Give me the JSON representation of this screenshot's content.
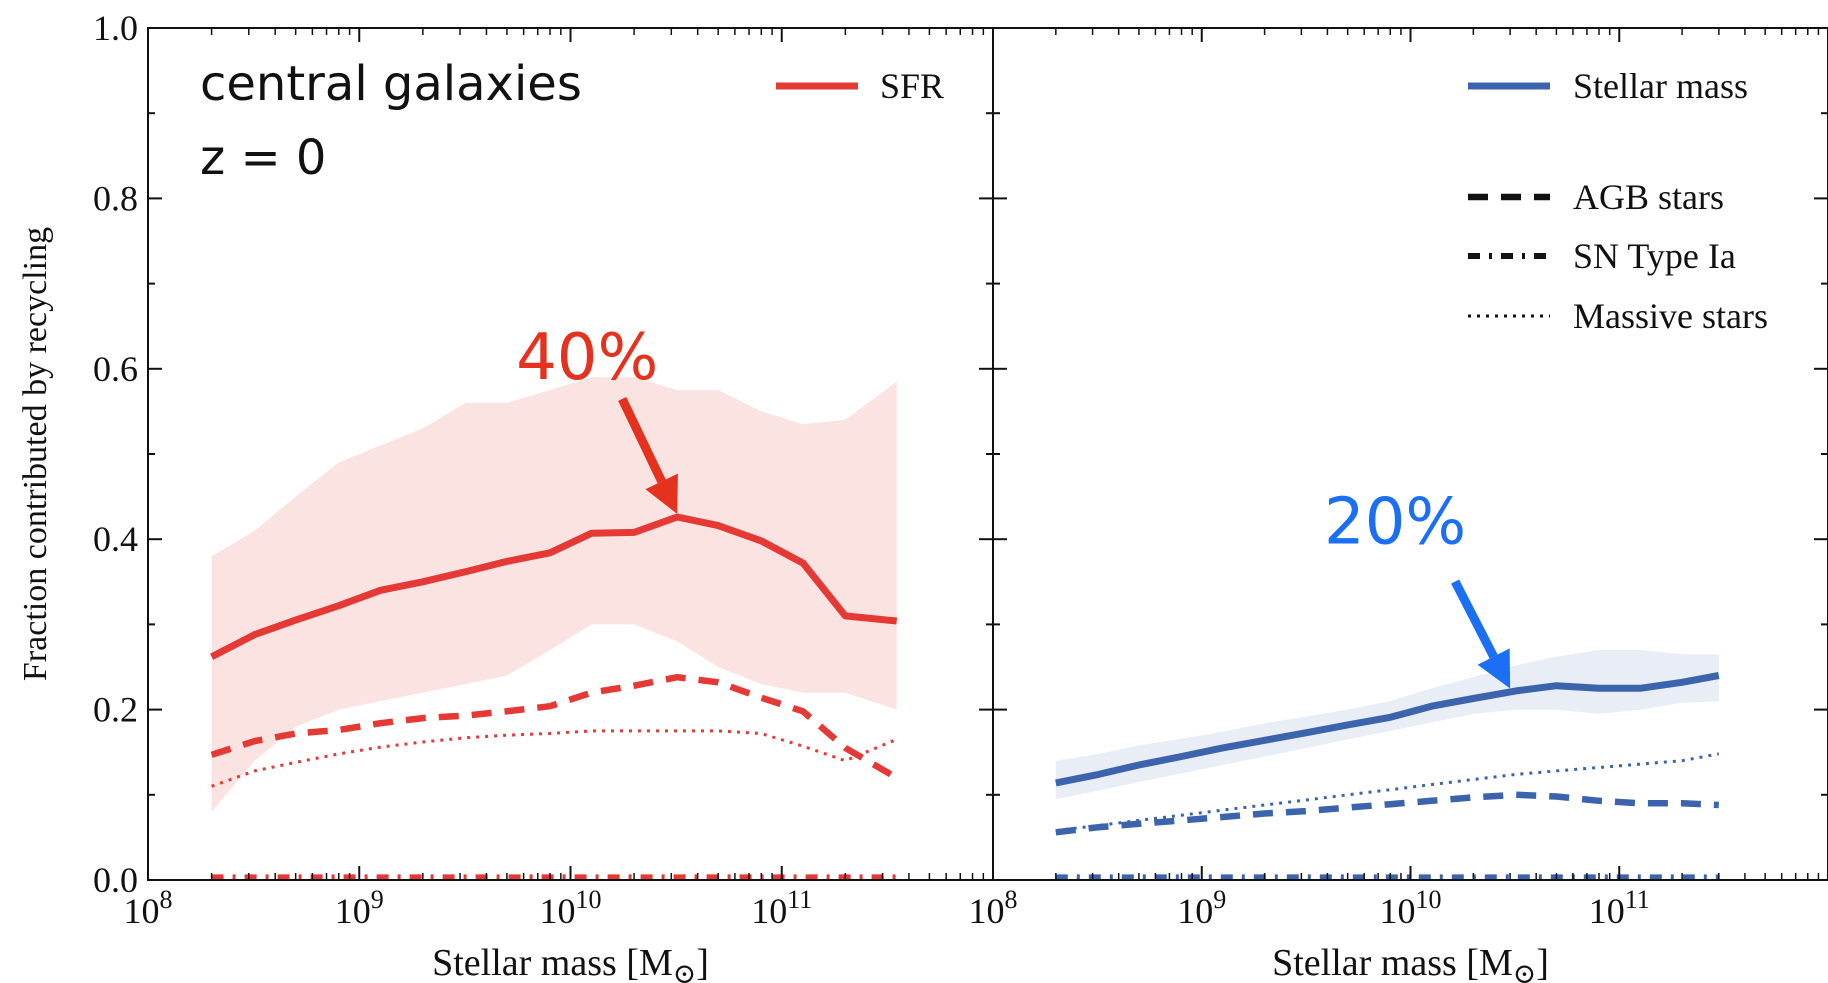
{
  "chart_data": [
    {
      "type": "line",
      "panel": "left",
      "annotation_title": [
        "central galaxies",
        "z = 0"
      ],
      "xlabel": "Stellar mass [M⊙]",
      "ylabel": "Fraction contributed by recycling",
      "xscale": "log",
      "xlim": [
        100000000.0,
        1000000000000.0
      ],
      "ylim": [
        0.0,
        1.0
      ],
      "xticklabels": [
        "10^8",
        "10^9",
        "10^10",
        "10^11"
      ],
      "yticklabels": [
        "0.0",
        "0.2",
        "0.4",
        "0.6",
        "0.8",
        "1.0"
      ],
      "legend": {
        "entries": [
          "SFR"
        ],
        "placement": "top-right"
      },
      "annotations": [
        {
          "text": "40%",
          "x": 32000000000.0,
          "y": 0.425,
          "color": "#e5321f"
        }
      ],
      "x": [
        200000000.0,
        320000000.0,
        500000000.0,
        800000000.0,
        1260000000.0,
        2000000000.0,
        3200000000.0,
        5000000000.0,
        8000000000.0,
        12600000000.0,
        20000000000.0,
        32000000000.0,
        50000000000.0,
        80000000000.0,
        126000000000.0,
        200000000000.0,
        350000000000.0
      ],
      "series": [
        {
          "name": "SFR",
          "style": "solid",
          "color": "#e53935",
          "values": [
            0.262,
            0.288,
            0.305,
            0.322,
            0.34,
            0.35,
            0.362,
            0.374,
            0.384,
            0.407,
            0.408,
            0.426,
            0.416,
            0.398,
            0.372,
            0.31,
            0.304
          ]
        },
        {
          "name": "",
          "style": "band",
          "color": "#fbe3e2",
          "lower": [
            0.08,
            0.14,
            0.18,
            0.2,
            0.21,
            0.22,
            0.23,
            0.24,
            0.27,
            0.3,
            0.3,
            0.28,
            0.25,
            0.23,
            0.22,
            0.22,
            0.2
          ],
          "upper": [
            0.38,
            0.41,
            0.45,
            0.49,
            0.51,
            0.53,
            0.56,
            0.56,
            0.575,
            0.59,
            0.59,
            0.575,
            0.575,
            0.55,
            0.535,
            0.54,
            0.585
          ]
        },
        {
          "name": "",
          "style": "dashed",
          "color": "#e53935",
          "values": [
            0.147,
            0.163,
            0.172,
            0.176,
            0.184,
            0.19,
            0.193,
            0.198,
            0.204,
            0.22,
            0.228,
            0.238,
            0.232,
            0.214,
            0.198,
            0.155,
            0.12
          ]
        },
        {
          "name": "",
          "style": "dotted",
          "color": "#e53935",
          "values": [
            0.11,
            0.128,
            0.138,
            0.148,
            0.156,
            0.162,
            0.167,
            0.17,
            0.172,
            0.175,
            0.175,
            0.175,
            0.175,
            0.172,
            0.157,
            0.14,
            0.165
          ]
        },
        {
          "name": "",
          "style": "dashdot",
          "color": "#e53935",
          "values": [
            0.003,
            0.003,
            0.003,
            0.003,
            0.003,
            0.003,
            0.003,
            0.003,
            0.003,
            0.003,
            0.003,
            0.003,
            0.003,
            0.003,
            0.003,
            0.003,
            0.003
          ]
        }
      ]
    },
    {
      "type": "line",
      "panel": "right",
      "xlabel": "Stellar mass [M⊙]",
      "xscale": "log",
      "xlim": [
        100000000.0,
        1000000000000.0
      ],
      "ylim": [
        0.0,
        1.0
      ],
      "xticklabels": [
        "10^8",
        "10^9",
        "10^10",
        "10^11"
      ],
      "legend": {
        "entries": [
          "Stellar mass",
          "AGB stars",
          "SN Type Ia",
          "Massive stars"
        ],
        "placement": "top-right"
      },
      "annotations": [
        {
          "text": "20%",
          "x": 30000000000.0,
          "y": 0.22,
          "color": "#1a6ff5"
        }
      ],
      "x": [
        200000000.0,
        320000000.0,
        500000000.0,
        800000000.0,
        1260000000.0,
        2000000000.0,
        3200000000.0,
        5000000000.0,
        8000000000.0,
        12600000000.0,
        20000000000.0,
        32000000000.0,
        50000000000.0,
        80000000000.0,
        126000000000.0,
        200000000000.0,
        300000000000.0
      ],
      "series": [
        {
          "name": "Stellar mass",
          "style": "solid",
          "color": "#3b64ad",
          "values": [
            0.114,
            0.124,
            0.135,
            0.145,
            0.155,
            0.164,
            0.173,
            0.182,
            0.191,
            0.204,
            0.213,
            0.222,
            0.228,
            0.225,
            0.225,
            0.232,
            0.24
          ]
        },
        {
          "name": "",
          "style": "band",
          "color": "#e8edf6",
          "lower": [
            0.095,
            0.105,
            0.115,
            0.125,
            0.135,
            0.145,
            0.155,
            0.165,
            0.175,
            0.185,
            0.195,
            0.2,
            0.2,
            0.195,
            0.2,
            0.208,
            0.21
          ],
          "upper": [
            0.14,
            0.148,
            0.158,
            0.166,
            0.174,
            0.184,
            0.192,
            0.2,
            0.21,
            0.225,
            0.238,
            0.252,
            0.262,
            0.27,
            0.27,
            0.265,
            0.265
          ]
        },
        {
          "name": "AGB stars",
          "style": "dashed",
          "color": "#3b64ad",
          "values": [
            0.056,
            0.062,
            0.066,
            0.07,
            0.074,
            0.078,
            0.081,
            0.085,
            0.089,
            0.093,
            0.097,
            0.1,
            0.098,
            0.093,
            0.09,
            0.09,
            0.088
          ]
        },
        {
          "name": "SN Type Ia",
          "style": "dashdot",
          "color": "#3b64ad",
          "values": [
            0.003,
            0.003,
            0.003,
            0.003,
            0.003,
            0.003,
            0.003,
            0.003,
            0.003,
            0.003,
            0.003,
            0.003,
            0.003,
            0.003,
            0.003,
            0.003,
            0.003
          ]
        },
        {
          "name": "Massive stars",
          "style": "dotted",
          "color": "#3b64ad",
          "values": [
            0.058,
            0.064,
            0.07,
            0.076,
            0.082,
            0.088,
            0.094,
            0.1,
            0.106,
            0.112,
            0.118,
            0.124,
            0.128,
            0.132,
            0.136,
            0.14,
            0.148
          ]
        }
      ]
    }
  ]
}
